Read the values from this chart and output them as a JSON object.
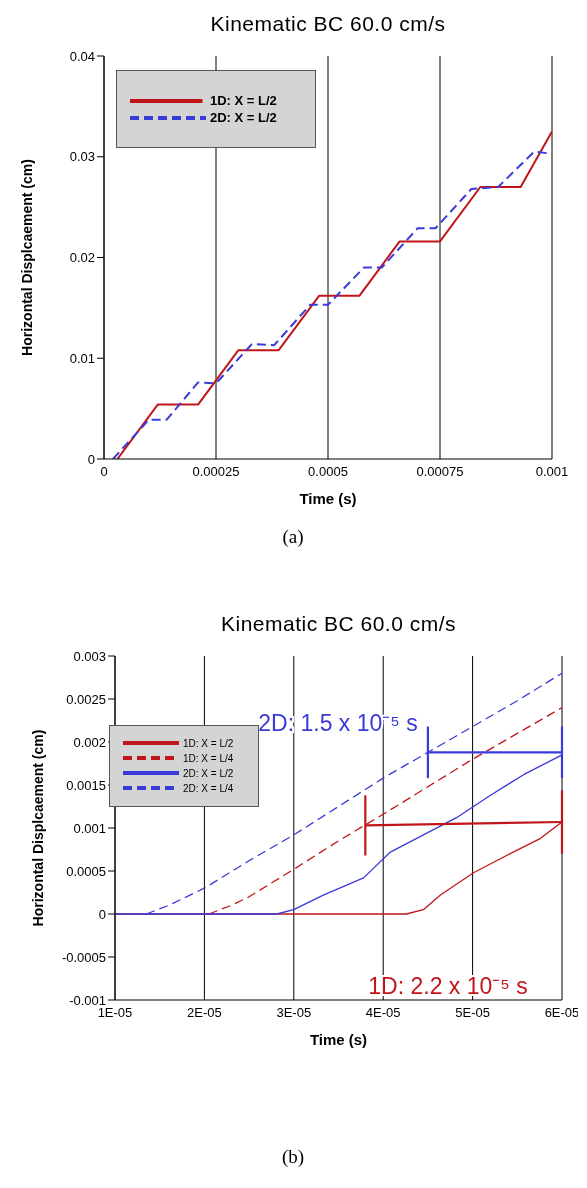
{
  "chart_data": [
    {
      "type": "line",
      "title": "Kinematic BC 60.0 cm/s",
      "xlabel": "Time (s)",
      "ylabel": "Horizontal Displcaement (cm)",
      "xlim": [
        0,
        0.001
      ],
      "ylim": [
        0,
        0.04
      ],
      "xticks": [
        0,
        0.00025,
        0.0005,
        0.00075,
        0.001
      ],
      "yticks": [
        0,
        0.01,
        0.02,
        0.03,
        0.04
      ],
      "grid": "x",
      "legend": "top left",
      "marker": "none",
      "annotations": [
        "(a)"
      ],
      "series": [
        {
          "name": "1D: X = L/2",
          "color": "#c0161b",
          "line_style": "solid",
          "x": [
            3e-05,
            0.00012,
            0.00021,
            0.0003,
            0.00039,
            0.00048,
            0.00057,
            0.00066,
            0.00075,
            0.00084,
            0.00093,
            0.001
          ],
          "values": [
            0,
            0.0054,
            0.0054,
            0.0108,
            0.0108,
            0.0162,
            0.0162,
            0.0216,
            0.0216,
            0.027,
            0.027,
            0.0325
          ]
        },
        {
          "name": "2D: X = L/2",
          "color": "#3a3ad8",
          "line_style": "dashed",
          "x": [
            2e-05,
            0.0001,
            0.00014,
            0.00021,
            0.00025,
            0.00033,
            0.00038,
            0.00046,
            0.0005,
            0.00058,
            0.00062,
            0.0007,
            0.00074,
            0.00082,
            0.00088,
            0.00096,
            0.001
          ],
          "values": [
            0,
            0.0039,
            0.0039,
            0.0076,
            0.0075,
            0.0114,
            0.0113,
            0.0153,
            0.0153,
            0.019,
            0.019,
            0.0229,
            0.0229,
            0.0268,
            0.027,
            0.0305,
            0.0303
          ]
        }
      ]
    },
    {
      "type": "line",
      "title": "Kinematic BC 60.0 cm/s",
      "xlabel": "Time (s)",
      "ylabel": "Horizontal Displcaement (cm)",
      "xlim": [
        1e-05,
        6e-05
      ],
      "ylim": [
        -0.001,
        0.003
      ],
      "xticks": [
        {
          "value": 1e-05,
          "label": "1E-05"
        },
        {
          "value": 2e-05,
          "label": "2E-05"
        },
        {
          "value": 3e-05,
          "label": "3E-05"
        },
        {
          "value": 4e-05,
          "label": "4E-05"
        },
        {
          "value": 5e-05,
          "label": "5E-05"
        },
        {
          "value": 6e-05,
          "label": "6E-05"
        }
      ],
      "yticks": [
        -0.001,
        -0.0005,
        0,
        0.0005,
        0.001,
        0.0015,
        0.002,
        0.0025,
        0.003
      ],
      "grid": "x",
      "legend": "left",
      "marker": "none",
      "annotations": [
        "2D: 1.5 x 10⁻⁵ s",
        "1D: 2.2 x 10⁻⁵ s",
        "(b)"
      ],
      "series": [
        {
          "name": "1D: X = L/2",
          "color": "#c0161b",
          "line_style": "solid",
          "x": [
            1e-05,
            2.8e-05,
            4.26e-05,
            4.45e-05,
            4.64e-05,
            5.01e-05,
            5.38e-05,
            5.76e-05,
            6e-05
          ],
          "values": [
            0,
            0,
            0,
            5e-05,
            0.00022,
            0.00048,
            0.00068,
            0.00088,
            0.00107
          ]
        },
        {
          "name": "1D: X = L/4",
          "color": "#c0161b",
          "line_style": "dashed",
          "x": [
            2.05e-05,
            2.3e-05,
            2.5e-05,
            3e-05,
            3.5e-05,
            4e-05,
            4.5e-05,
            5e-05,
            5.5e-05,
            6e-05
          ],
          "values": [
            0,
            0.0001,
            0.0002,
            0.00052,
            0.00085,
            0.00116,
            0.00148,
            0.0018,
            0.0021,
            0.0024
          ]
        },
        {
          "name": "2D: X = L/2",
          "color": "#3a3ad8",
          "line_style": "solid",
          "x": [
            1e-05,
            2.81e-05,
            3e-05,
            3.33e-05,
            3.78e-05,
            4.08e-05,
            4.45e-05,
            4.82e-05,
            5.2e-05,
            5.57e-05,
            6e-05
          ],
          "values": [
            0,
            0,
            5e-05,
            0.00022,
            0.00042,
            0.00072,
            0.00092,
            0.00112,
            0.00138,
            0.00162,
            0.00185
          ]
        },
        {
          "name": "2D: X = L/4",
          "color": "#3a3ad8",
          "line_style": "dashed",
          "x": [
            1.35e-05,
            1.6e-05,
            2e-05,
            2.5e-05,
            3e-05,
            3.5e-05,
            4e-05,
            4.5e-05,
            5e-05,
            5.5e-05,
            6e-05
          ],
          "values": [
            0,
            0.0001,
            0.0003,
            0.00062,
            0.00092,
            0.00125,
            0.00158,
            0.00188,
            0.00218,
            0.00248,
            0.0028
          ]
        },
        {
          "type": "line",
          "color": "#3a3ad8",
          "line_style": "solid",
          "x": [
            4.5e-05,
            6e-05
          ],
          "values": [
            0.00188,
            0.00188
          ],
          "errors": [
            0.0003,
            0.0003
          ]
        },
        {
          "type": "line",
          "color": "#c0161b",
          "line_style": "solid",
          "x": [
            3.8e-05,
            6e-05
          ],
          "values": [
            0.00103,
            0.00107
          ],
          "errors": [
            0.00035,
            0.00037
          ]
        }
      ]
    }
  ]
}
